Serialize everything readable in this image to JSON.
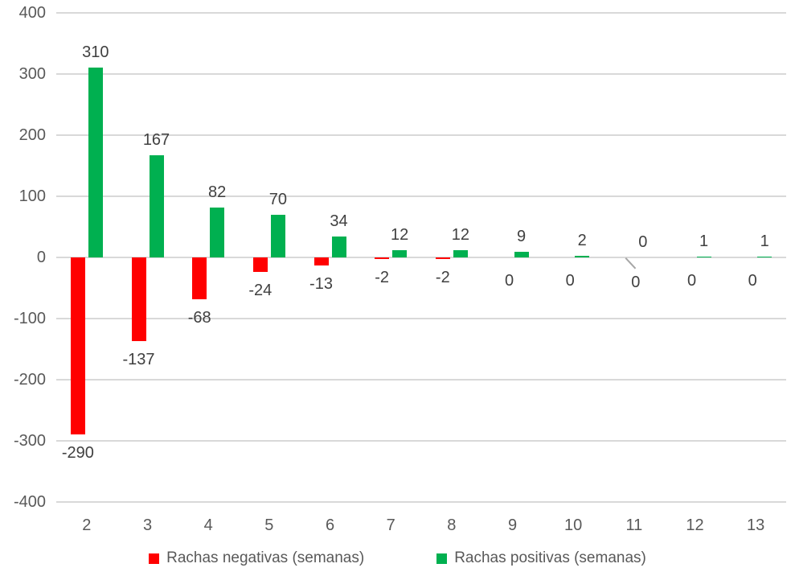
{
  "chart_data": {
    "type": "bar",
    "title": "",
    "xlabel": "",
    "ylabel": "",
    "categories": [
      "2",
      "3",
      "4",
      "5",
      "6",
      "7",
      "8",
      "9",
      "10",
      "11",
      "12",
      "13"
    ],
    "series": [
      {
        "name": "Rachas negativas (semanas)",
        "color": "#ff0000",
        "values": [
          -290,
          -137,
          -68,
          -24,
          -13,
          -2,
          -2,
          0,
          0,
          0,
          0,
          0
        ],
        "labels": [
          "-290",
          "-137",
          "-68",
          "-24",
          "-13",
          "-2",
          "-2",
          "0",
          "0",
          "0",
          "0",
          "0"
        ]
      },
      {
        "name": "Rachas positivas (semanas)",
        "color": "#00b050",
        "values": [
          310,
          167,
          82,
          70,
          34,
          12,
          12,
          9,
          2,
          0,
          1,
          1
        ],
        "labels": [
          "310",
          "167",
          "82",
          "70",
          "34",
          "12",
          "12",
          "9",
          "2",
          "0",
          "1",
          "1"
        ]
      }
    ],
    "yticks": [
      "400",
      "300",
      "200",
      "100",
      "0",
      "-100",
      "-200",
      "-300",
      "-400"
    ],
    "ylim": [
      -400,
      400
    ],
    "grid": true,
    "data_labels": true,
    "legend_position": "bottom",
    "moved_label_leader_line": {
      "series": "Rachas negativas (semanas)",
      "category": "11"
    }
  },
  "colors": {
    "grid": "#d9d9d9",
    "axis_text": "#595959",
    "data_label_text": "#404040",
    "leader_line": "#a6a6a6",
    "background": "#ffffff"
  }
}
